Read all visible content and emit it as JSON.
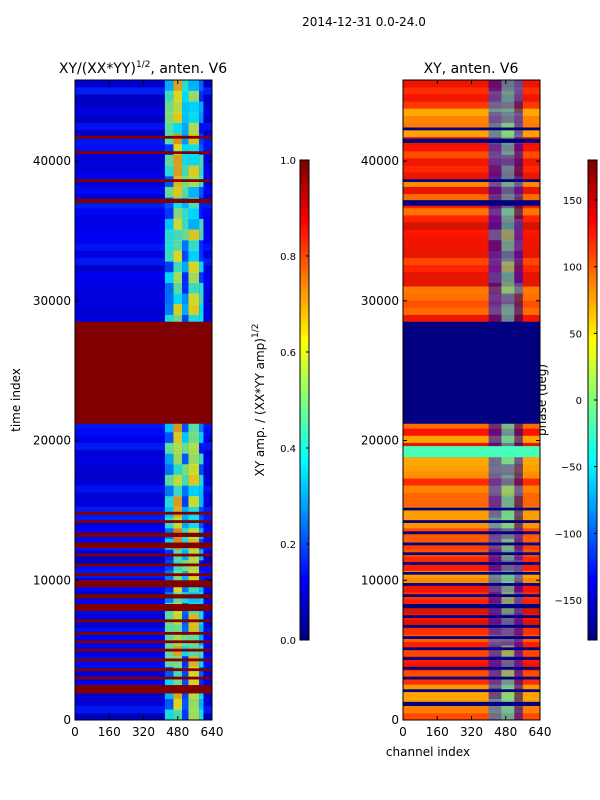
{
  "suptitle": "2014-12-31 0.0-24.0",
  "chart_data": [
    {
      "type": "heatmap",
      "title_main": "XY/(XX*YY)",
      "title_sup": "1/2",
      "title_rest": ", anten. V6",
      "xlabel": "",
      "ylabel": "time index",
      "xlim": [
        0,
        640
      ],
      "ylim": [
        0,
        45800
      ],
      "xticks": [
        "0",
        "160",
        "320",
        "480",
        "640"
      ],
      "xtick_values": [
        0,
        160,
        320,
        480,
        640
      ],
      "yticks": [
        "0",
        "10000",
        "20000",
        "30000",
        "40000"
      ],
      "ytick_values": [
        0,
        10000,
        20000,
        30000,
        40000
      ],
      "colorbar": {
        "label_main": "XY amp. / (XX*YY amp)",
        "label_sup": "1/2",
        "range": [
          0.0,
          1.0
        ],
        "ticks": [
          "0.0",
          "0.2",
          "0.4",
          "0.6",
          "0.8",
          "1.0"
        ],
        "tick_values": [
          0.0,
          0.2,
          0.4,
          0.6,
          0.8,
          1.0
        ],
        "colormap": "jet"
      },
      "background_value": 0.08,
      "saturated_rows": [
        {
          "t0": 21200,
          "t1": 28500,
          "v": 1.0
        },
        {
          "t0": 1900,
          "t1": 2500,
          "v": 1.0
        },
        {
          "t0": 2900,
          "t1": 3100,
          "v": 1.0
        },
        {
          "t0": 3500,
          "t1": 3700,
          "v": 1.0
        },
        {
          "t0": 4200,
          "t1": 4400,
          "v": 1.0
        },
        {
          "t0": 4900,
          "t1": 5100,
          "v": 1.0
        },
        {
          "t0": 5500,
          "t1": 5700,
          "v": 1.0
        },
        {
          "t0": 6100,
          "t1": 6300,
          "v": 1.0
        },
        {
          "t0": 7000,
          "t1": 7200,
          "v": 1.0
        },
        {
          "t0": 7800,
          "t1": 8300,
          "v": 1.0
        },
        {
          "t0": 8700,
          "t1": 9000,
          "v": 1.0
        },
        {
          "t0": 9500,
          "t1": 10000,
          "v": 1.0
        },
        {
          "t0": 10300,
          "t1": 10500,
          "v": 1.0
        },
        {
          "t0": 11000,
          "t1": 11200,
          "v": 1.0
        },
        {
          "t0": 11700,
          "t1": 11900,
          "v": 1.0
        },
        {
          "t0": 12300,
          "t1": 12700,
          "v": 1.0
        },
        {
          "t0": 13100,
          "t1": 13400,
          "v": 1.0
        },
        {
          "t0": 14100,
          "t1": 14300,
          "v": 1.0
        },
        {
          "t0": 14700,
          "t1": 14900,
          "v": 1.0
        },
        {
          "t0": 37000,
          "t1": 37300,
          "v": 1.0
        },
        {
          "t0": 38500,
          "t1": 38700,
          "v": 1.0
        },
        {
          "t0": 40500,
          "t1": 40700,
          "v": 1.0
        },
        {
          "t0": 41600,
          "t1": 41800,
          "v": 1.0
        }
      ],
      "bright_channel_bands": [
        {
          "c0": 420,
          "c1": 460,
          "v": 0.35
        },
        {
          "c0": 460,
          "c1": 500,
          "v": 0.55
        },
        {
          "c0": 500,
          "c1": 530,
          "v": 0.35
        },
        {
          "c0": 530,
          "c1": 580,
          "v": 0.5
        },
        {
          "c0": 580,
          "c1": 600,
          "v": 0.3
        }
      ]
    },
    {
      "type": "heatmap",
      "title_main": "XY, anten. V6",
      "xlabel": "channel index",
      "ylabel": "",
      "xlim": [
        0,
        640
      ],
      "ylim": [
        0,
        45800
      ],
      "xticks": [
        "0",
        "160",
        "320",
        "480",
        "640"
      ],
      "xtick_values": [
        0,
        160,
        320,
        480,
        640
      ],
      "yticks": [
        "0",
        "10000",
        "20000",
        "30000",
        "40000"
      ],
      "ytick_values": [
        0,
        10000,
        20000,
        30000,
        40000
      ],
      "colorbar": {
        "label_main": "phase (deg)",
        "range": [
          -180,
          180
        ],
        "ticks": [
          "−150",
          "−100",
          "−50",
          "0",
          "50",
          "100",
          "150"
        ],
        "tick_values": [
          -150,
          -100,
          -50,
          0,
          50,
          100,
          150
        ],
        "colormap": "jet"
      },
      "background_value": 110,
      "saturated_rows": [
        {
          "t0": 21200,
          "t1": 28500,
          "v": -180
        },
        {
          "t0": 18800,
          "t1": 19600,
          "v": -20
        }
      ],
      "dark_rows": [
        {
          "t0": 1000,
          "t1": 1300
        },
        {
          "t0": 2000,
          "t1": 2200
        },
        {
          "t0": 2900,
          "t1": 3100
        },
        {
          "t0": 3600,
          "t1": 3800
        },
        {
          "t0": 4300,
          "t1": 4500
        },
        {
          "t0": 5000,
          "t1": 5200
        },
        {
          "t0": 5800,
          "t1": 6000
        },
        {
          "t0": 6600,
          "t1": 6800
        },
        {
          "t0": 7300,
          "t1": 7500
        },
        {
          "t0": 8000,
          "t1": 8300
        },
        {
          "t0": 8800,
          "t1": 9000
        },
        {
          "t0": 9600,
          "t1": 9800
        },
        {
          "t0": 10400,
          "t1": 10600
        },
        {
          "t0": 11100,
          "t1": 11300
        },
        {
          "t0": 11800,
          "t1": 12000
        },
        {
          "t0": 12500,
          "t1": 12700
        },
        {
          "t0": 13300,
          "t1": 13500
        },
        {
          "t0": 14100,
          "t1": 14300
        },
        {
          "t0": 15000,
          "t1": 15200
        },
        {
          "t0": 36800,
          "t1": 37200
        },
        {
          "t0": 38500,
          "t1": 38700
        },
        {
          "t0": 41300,
          "t1": 41600
        },
        {
          "t0": 42200,
          "t1": 42400
        }
      ],
      "cool_channel_bands": [
        {
          "c0": 400,
          "c1": 460,
          "v": -120
        },
        {
          "c0": 460,
          "c1": 520,
          "v": -60
        },
        {
          "c0": 520,
          "c1": 560,
          "v": -140
        }
      ]
    }
  ]
}
